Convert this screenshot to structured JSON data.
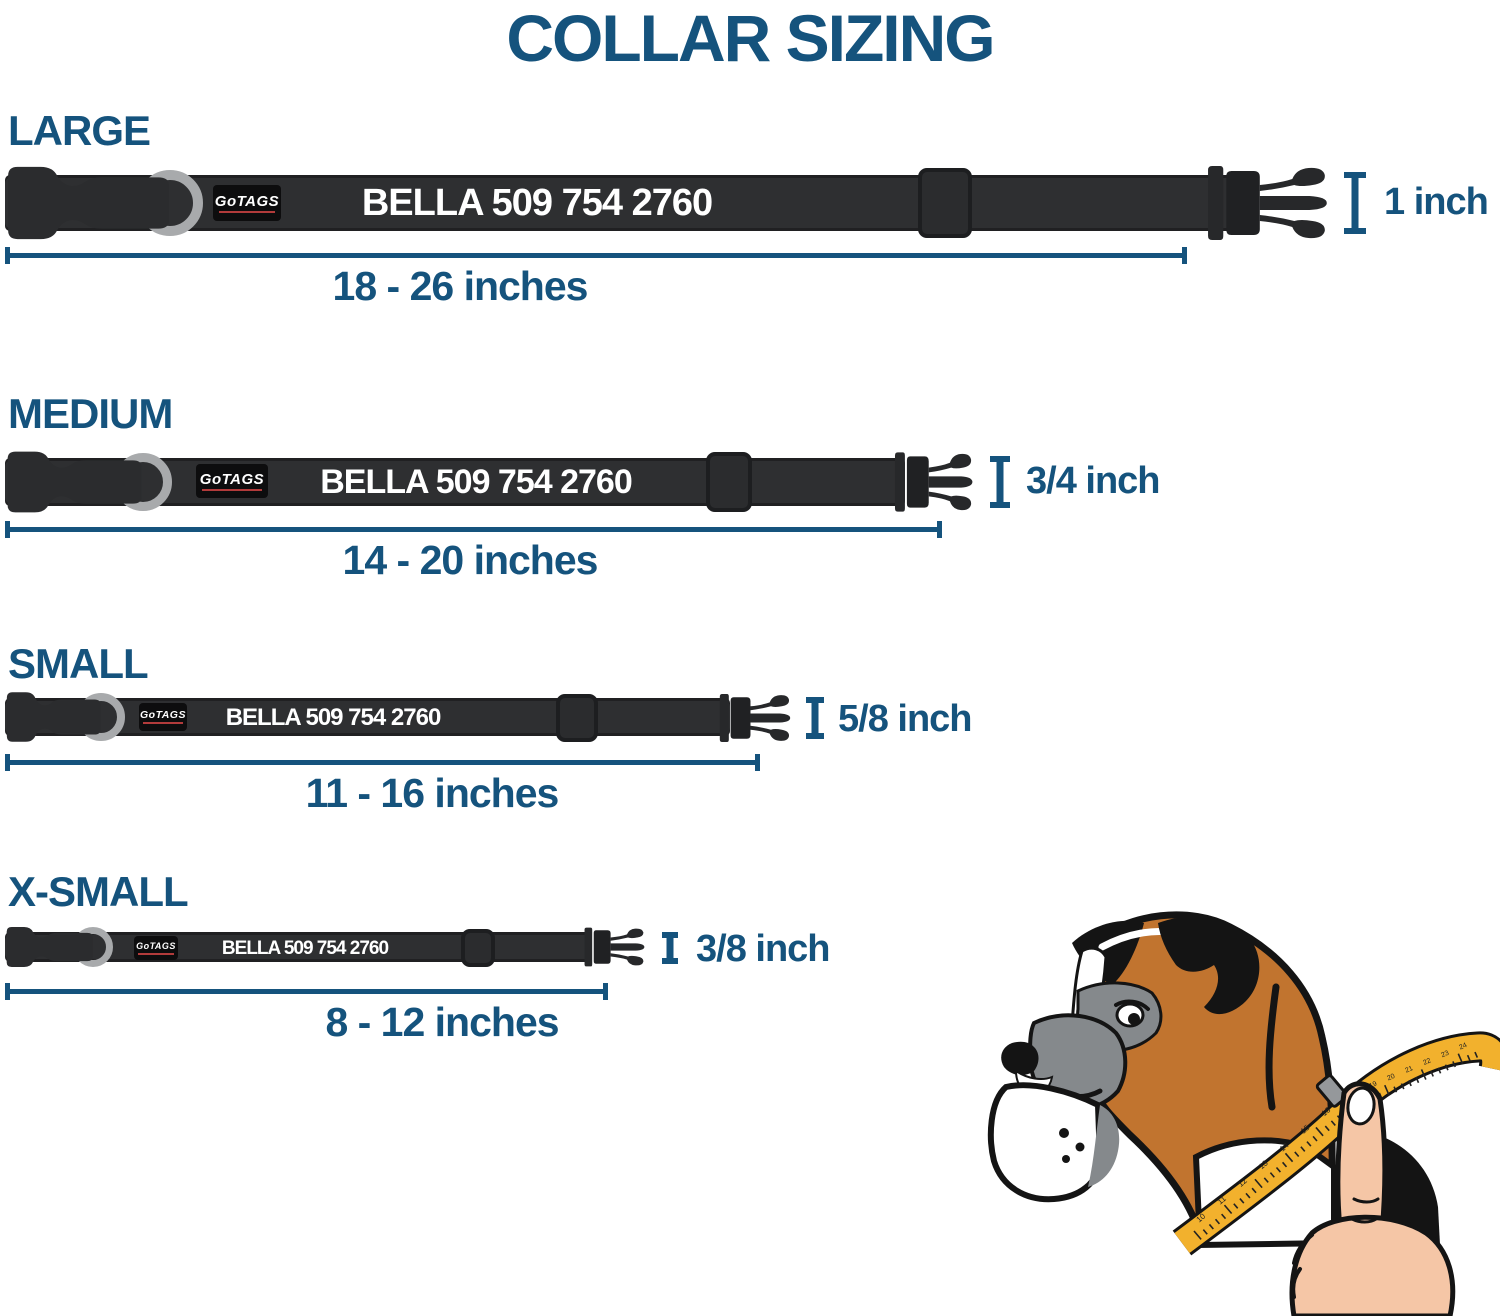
{
  "title": "COLLAR SIZING",
  "logo": "GoTAGS",
  "personalization": "BELLA 509 754 2760",
  "sizes": [
    {
      "label": "LARGE",
      "length_range": "18 - 26 inches",
      "width": "1 inch"
    },
    {
      "label": "MEDIUM",
      "length_range": "14 - 20 inches",
      "width": "3/4 inch"
    },
    {
      "label": "SMALL",
      "length_range": "11 - 16 inches",
      "width": "5/8 inch"
    },
    {
      "label": "X-SMALL",
      "length_range": "8 - 12 inches",
      "width": "3/8 inch"
    }
  ],
  "illustration": {
    "tape_numbers_lower": [
      "10",
      "11",
      "12",
      "13",
      "14",
      "15",
      "16"
    ],
    "tape_numbers_upper": [
      "18",
      "19",
      "20",
      "21",
      "22",
      "23",
      "24"
    ]
  },
  "colors": {
    "accent_blue": "#15537D",
    "collar_black": "#2E2F31",
    "hardware_black": "#27282A",
    "ring_gray": "#A8AAAC",
    "logo_red": "#B23B3B",
    "name_white": "#FFFFFF",
    "tape_yellow": "#F2B12D",
    "dog_tan": "#C1742F",
    "dog_gray": "#85898C",
    "skin_tone": "#F5C6A6"
  }
}
